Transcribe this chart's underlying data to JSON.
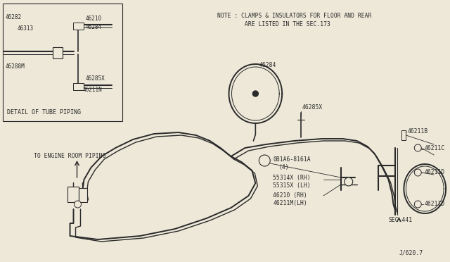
{
  "bg_color": "#ede8d8",
  "line_color": "#2a2a2a",
  "text_color": "#2a2a2a",
  "note_line1": "NOTE : CLAMPS & INSULATORS FOR FLOOR AND REAR",
  "note_line2": "        ARE LISTED IN THE SEC.173",
  "detail_title": "DETAIL OF TUBE PIPING",
  "engine_label": "TO ENGINE ROOM PIPING",
  "page_id": "J/620.7",
  "fig_w": 6.4,
  "fig_h": 3.72,
  "dpi": 100
}
